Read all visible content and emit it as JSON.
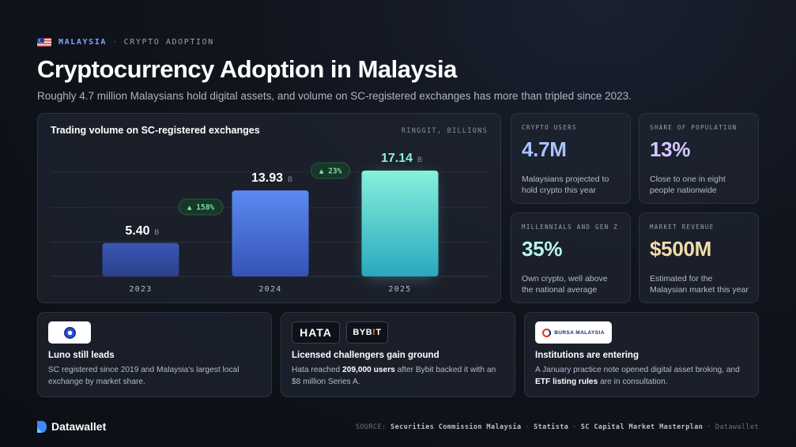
{
  "header": {
    "country": "MALAYSIA",
    "separator": "·",
    "topic": "CRYPTO ADOPTION",
    "title": "Cryptocurrency Adoption in Malaysia",
    "subtitle": "Roughly 4.7 million Malaysians hold digital assets, and volume on SC-registered exchanges has more than tripled since 2023."
  },
  "chart_data": {
    "type": "bar",
    "title": "Trading volume on SC-registered exchanges",
    "unit_label": "RINGGIT, BILLIONS",
    "categories": [
      "2023",
      "2024",
      "2025"
    ],
    "values": [
      5.4,
      13.93,
      17.14
    ],
    "value_labels": [
      "5.40",
      "13.93",
      "17.14"
    ],
    "value_suffix": "B",
    "growth_labels": [
      "▲ 158%",
      "▲ 23%"
    ],
    "ylim": [
      0,
      17.14
    ],
    "grid": true,
    "colors": {
      "bar_2023": [
        "#3a57b5",
        "#2c3f8a"
      ],
      "bar_2024": [
        "#5b8af0",
        "#3553b8"
      ],
      "bar_2025": [
        "#86f0da",
        "#2aa8bf"
      ],
      "growth_text": "#7ee0a3",
      "growth_bg": "#17372a"
    }
  },
  "stats": [
    {
      "label": "CRYPTO USERS",
      "value": "4.7M",
      "desc": "Malaysians projected to hold crypto this year",
      "color": "#a6c4ff"
    },
    {
      "label": "SHARE OF POPULATION",
      "value": "13%",
      "desc": "Close to one in eight people nationwide",
      "color": "#d7c6ff"
    },
    {
      "label": "MILLENNIALS AND GEN Z",
      "value": "35%",
      "desc": "Own crypto, well above the national average",
      "color": "#b8f5e8"
    },
    {
      "label": "MARKET REVENUE",
      "value": "$500M",
      "desc": "Estimated for the Malaysian market this year",
      "color": "#f3dcaa"
    }
  ],
  "cards": [
    {
      "title": "Luno still leads",
      "desc": "SC registered since 2019 and Malaysia's largest local exchange by market share."
    },
    {
      "title": "Licensed challengers gain ground",
      "desc_pre": "Hata reached ",
      "desc_bold": "209,000 users",
      "desc_post": " after Bybit backed it with an $8 million Series A.",
      "logos": [
        "HATA",
        "BYB",
        "!",
        "T"
      ]
    },
    {
      "title": "Institutions are entering",
      "desc_pre": "A January practice note opened digital asset broking, and ",
      "desc_bold": "ETF listing rules",
      "desc_post": " are in consultation.",
      "logo_text": "BURSA MALAYSIA"
    }
  ],
  "footer": {
    "brand": "Datawallet",
    "source_label": "SOURCE:",
    "sources": [
      "Securities Commission Malaysia",
      "Statista",
      "SC Capital Market Masterplan"
    ],
    "credit": "Datawallet"
  }
}
